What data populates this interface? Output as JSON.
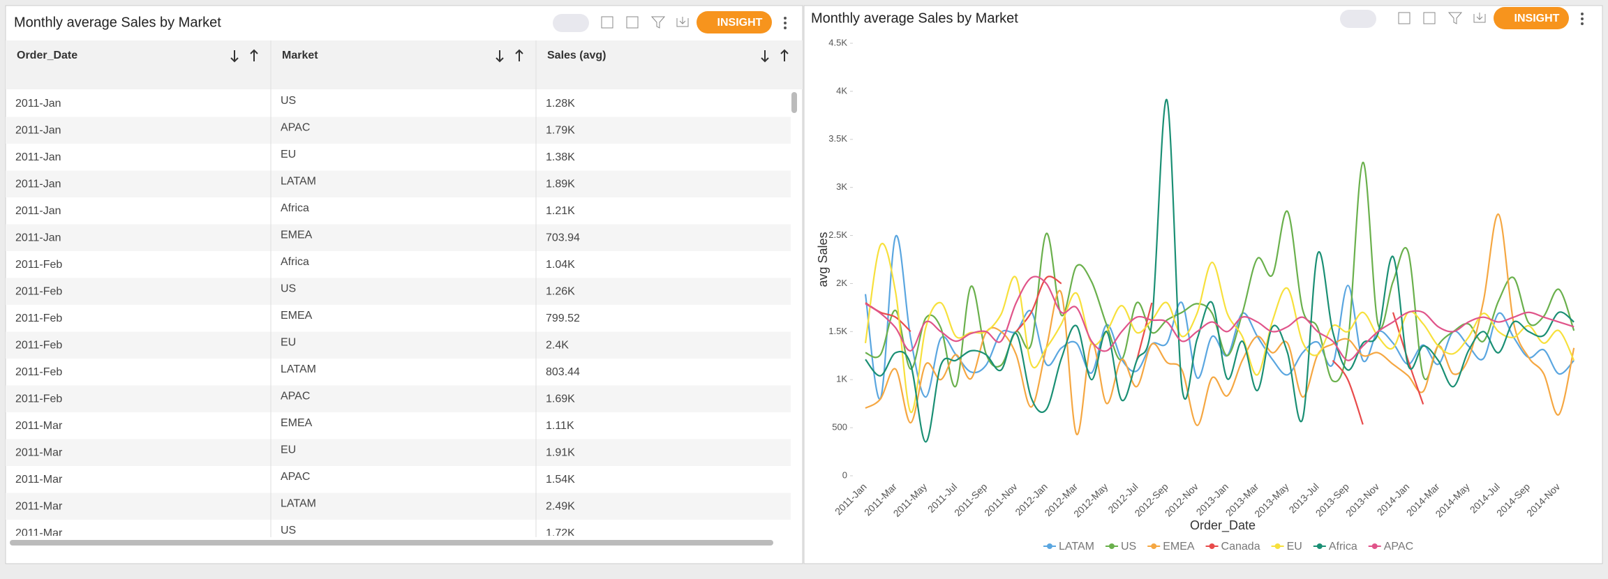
{
  "left_panel": {
    "title": "Monthly average Sales by Market",
    "insight": "INSIGHT",
    "table": {
      "columns": [
        "Order_Date",
        "Market",
        "Sales (avg)"
      ],
      "rows": [
        [
          "2011-Jan",
          "US",
          "1.28K"
        ],
        [
          "2011-Jan",
          "APAC",
          "1.79K"
        ],
        [
          "2011-Jan",
          "EU",
          "1.38K"
        ],
        [
          "2011-Jan",
          "LATAM",
          "1.89K"
        ],
        [
          "2011-Jan",
          "Africa",
          "1.21K"
        ],
        [
          "2011-Jan",
          "EMEA",
          "703.94"
        ],
        [
          "2011-Feb",
          "Africa",
          "1.04K"
        ],
        [
          "2011-Feb",
          "US",
          "1.26K"
        ],
        [
          "2011-Feb",
          "EMEA",
          "799.52"
        ],
        [
          "2011-Feb",
          "EU",
          "2.4K"
        ],
        [
          "2011-Feb",
          "LATAM",
          "803.44"
        ],
        [
          "2011-Feb",
          "APAC",
          "1.69K"
        ],
        [
          "2011-Mar",
          "EMEA",
          "1.11K"
        ],
        [
          "2011-Mar",
          "EU",
          "1.91K"
        ],
        [
          "2011-Mar",
          "APAC",
          "1.54K"
        ],
        [
          "2011-Mar",
          "LATAM",
          "2.49K"
        ],
        [
          "2011-Mar",
          "US",
          "1.72K"
        ]
      ]
    }
  },
  "right_panel": {
    "insight": "INSIGHT"
  },
  "chart_data": {
    "type": "line",
    "title": "Monthly average Sales by Market",
    "xlabel": "Order_Date",
    "ylabel": "avg Sales",
    "categories": [
      "2011-Jan",
      null,
      "2011-Mar",
      null,
      "2011-May",
      null,
      "2011-Jul",
      null,
      "2011-Sep",
      null,
      "2011-Nov",
      null,
      "2012-Jan",
      null,
      "2012-Mar",
      null,
      "2012-May",
      null,
      "2012-Jul",
      null,
      "2012-Sep",
      null,
      "2012-Nov",
      null,
      "2013-Jan",
      null,
      "2013-Mar",
      null,
      "2013-May",
      null,
      "2013-Jul",
      null,
      "2013-Sep",
      null,
      "2013-Nov",
      null,
      "2014-Jan",
      null,
      "2014-Mar",
      null,
      "2014-May",
      null,
      "2014-Jul",
      null,
      "2014-Sep",
      null,
      "2014-Nov",
      null
    ],
    "ylim": [
      0,
      4500
    ],
    "yticks": [
      0,
      500,
      {
        "value": 1000,
        "label": "1K"
      },
      {
        "value": 1500,
        "label": "1.5K"
      },
      {
        "value": 2000,
        "label": "2K"
      },
      {
        "value": 2500,
        "label": "2.5K"
      },
      {
        "value": 3000,
        "label": "3K"
      },
      {
        "value": 3500,
        "label": "3.5K"
      },
      {
        "value": 4000,
        "label": "4K"
      },
      {
        "value": 4500,
        "label": "4.5K"
      }
    ],
    "grid": false,
    "legend": "bottom",
    "series": [
      {
        "name": "LATAM",
        "color": "#5aa6e0",
        "values": [
          1890,
          803.44,
          2490,
          1430,
          819.25,
          1430,
          1260,
          1080,
          1150,
          1490,
          1500,
          1710,
          1160,
          1330,
          1380,
          1070,
          1570,
          1210,
          1090,
          1370,
          1380,
          1800,
          1020,
          1450,
          1250,
          1690,
          1450,
          1210,
          1050,
          1280,
          1390,
          1160,
          1980,
          1200,
          1500,
          1380,
          1160,
          1360,
          1160,
          1500,
          1350,
          1220,
          1690,
          1440,
          1230,
          1310,
          1060,
          1200
        ]
      },
      {
        "name": "US",
        "color": "#6ab04c",
        "values": [
          1280,
          1260,
          1720,
          1110,
          1640,
          1540,
          932.57,
          1970,
          1270,
          1150,
          1500,
          1370,
          2520,
          1670,
          2180,
          2020,
          1570,
          1210,
          1800,
          1490,
          1620,
          1700,
          1790,
          1690,
          1250,
          1690,
          2260,
          2090,
          2750,
          1730,
          1540,
          987.17,
          1370,
          3260,
          1580,
          2020,
          2330,
          1040,
          1360,
          1500,
          1580,
          1400,
          1820,
          2060,
          1590,
          1660,
          1940,
          1510
        ]
      },
      {
        "name": "EMEA",
        "color": "#f5a742",
        "values": [
          703.94,
          799.52,
          1110,
          551.16,
          1160,
          1000,
          1260,
          1010,
          1490,
          1500,
          1260,
          715.7,
          1330,
          1900,
          433.92,
          1380,
          751.85,
          1210,
          927.55,
          1370,
          1180,
          1100,
          524.65,
          1020,
          831.33,
          1200,
          1450,
          1280,
          1380,
          820.2,
          1260,
          1370,
          1420,
          1250,
          1280,
          1160,
          1040,
          876.8,
          1350,
          1060,
          1220,
          1820,
          2720,
          1590,
          1230,
          1060,
          636.24,
          1330
        ]
      },
      {
        "name": "Canada",
        "color": "#e84b4b",
        "values": [
          1800,
          1700,
          1650,
          1500,
          null,
          null,
          null,
          null,
          null,
          null,
          1500,
          1700,
          2060,
          2000,
          null,
          null,
          null,
          null,
          1200,
          1800,
          null,
          null,
          null,
          null,
          null,
          null,
          null,
          null,
          null,
          null,
          null,
          1200,
          1000,
          533.61,
          null,
          1700,
          1200,
          743.58,
          null,
          null,
          null,
          null,
          null,
          null,
          null,
          null,
          null,
          null
        ]
      },
      {
        "name": "EU",
        "color": "#f7e03c",
        "values": [
          1380,
          2400,
          1910,
          662.14,
          1540,
          1800,
          1450,
          1490,
          1500,
          1680,
          2060,
          1160,
          1330,
          1580,
          1900,
          1380,
          1500,
          1770,
          1490,
          1620,
          1800,
          1450,
          1690,
          2220,
          1690,
          1450,
          1050,
          1610,
          1950,
          1390,
          1260,
          1560,
          1500,
          1700,
          1450,
          1330,
          1700,
          1580,
          1350,
          1270,
          1440,
          1690,
          1500,
          1440,
          1560,
          1380,
          1510,
          1200
        ]
      },
      {
        "name": "Africa",
        "color": "#1a8f74",
        "values": [
          1210,
          1040,
          1280,
          1160,
          351.9,
          1150,
          1200,
          1300,
          1260,
          1100,
          1480,
          810,
          690,
          1220,
          1560,
          1000,
          1500,
          786.98,
          1200,
          1600,
          3910,
          919.07,
          1420,
          1800,
          1010,
          1400,
          887.13,
          1550,
          1280,
          590.23,
          2310,
          1500,
          1100,
          1380,
          1480,
          2280,
          1150,
          1350,
          1200,
          927.13,
          1300,
          1500,
          1280,
          1600,
          1500,
          1460,
          1700,
          1600
        ]
      },
      {
        "name": "APAC",
        "color": "#e0548a",
        "values": [
          1790,
          1690,
          1540,
          1300,
          1600,
          1500,
          1400,
          1480,
          1500,
          1400,
          1800,
          2060,
          2000,
          1700,
          1750,
          1400,
          1300,
          1500,
          1650,
          1620,
          1600,
          1400,
          1500,
          1600,
          1500,
          1650,
          1600,
          1500,
          1550,
          1650,
          1500,
          1400,
          1200,
          1350,
          1500,
          1600,
          1700,
          1700,
          1550,
          1500,
          1600,
          1650,
          1600,
          1650,
          1700,
          1650,
          1600,
          1550
        ]
      }
    ]
  }
}
